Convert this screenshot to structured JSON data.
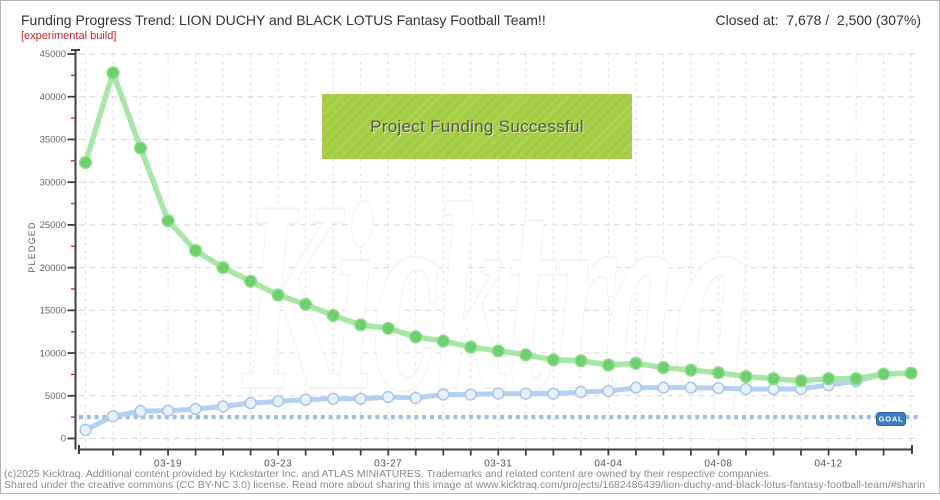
{
  "header": {
    "title": "Funding Progress Trend: LION DUCHY and BLACK LOTUS Fantasy Football Team!!",
    "closed_label": "Closed at:",
    "closed_value": "7,678 /  2,500 (307%)",
    "experimental": "[experimental build]"
  },
  "banner": {
    "text": "Project Funding Successful"
  },
  "watermark": "Kicktraq",
  "footer": {
    "line1": "(c)2025 Kicktraq. Additional content provided by Kickstarter Inc. and ATLAS MINIATURES. Trademarks and related content are owned by their respective companies.",
    "line2": "Shared under the creative commons (CC BY-NC 3.0) license. Read more about sharing this image at www.kicktraq.com/projects/1682486439/lion-duchy-and-black-lotus-fantasy-football-team/#sharin"
  },
  "chart_data": {
    "type": "line",
    "title": "Funding Progress Trend",
    "ylabel": "PLEDGED",
    "ylim": [
      0,
      45000
    ],
    "ytick_step": 5000,
    "ytick_minor_step": 2500,
    "goal": 2500,
    "goal_label": "GOAL",
    "grid": true,
    "x": [
      "03-16",
      "03-17",
      "03-18",
      "03-19",
      "03-20",
      "03-21",
      "03-22",
      "03-23",
      "03-24",
      "03-25",
      "03-26",
      "03-27",
      "03-28",
      "03-29",
      "03-30",
      "03-31",
      "04-01",
      "04-02",
      "04-03",
      "04-04",
      "04-05",
      "04-06",
      "04-07",
      "04-08",
      "04-09",
      "04-10",
      "04-11",
      "04-12",
      "04-13",
      "04-14",
      "04-15"
    ],
    "x_tick_labels": [
      "03-19",
      "03-23",
      "03-27",
      "03-31",
      "04-04",
      "04-08",
      "04-12"
    ],
    "x_tick_indices": [
      3,
      7,
      11,
      15,
      19,
      23,
      27
    ],
    "series": [
      {
        "name": "projection-trend",
        "line_color": "#a8e7a8",
        "dot_fill": "#6ecf6e",
        "dot_stroke": "#8cdc8c",
        "values": [
          32300,
          42800,
          34000,
          25500,
          22000,
          20000,
          18400,
          16800,
          15700,
          14400,
          13300,
          12900,
          11900,
          11400,
          10700,
          10250,
          9800,
          9200,
          9100,
          8600,
          8800,
          8300,
          8000,
          7700,
          7250,
          7000,
          6750,
          7000,
          7000,
          7550,
          7650
        ]
      },
      {
        "name": "pledged",
        "line_color": "#b3d1f1",
        "dot_fill": "#e9f1fb",
        "dot_stroke": "#a6c7ec",
        "values": [
          1000,
          2600,
          3200,
          3250,
          3450,
          3750,
          4150,
          4350,
          4550,
          4650,
          4650,
          4850,
          4750,
          5150,
          5150,
          5250,
          5250,
          5250,
          5450,
          5550,
          5950,
          5950,
          5950,
          5900,
          5800,
          5800,
          5800,
          6250,
          6700,
          7550,
          7678
        ]
      }
    ],
    "colors": {
      "goal_line": "#9dbfe4",
      "goal_box": "#3c7dc0",
      "goal_box_border": "#2f64a0",
      "axis": "#3f3f3f",
      "minor_tick": "#cc2f2f",
      "grid_h": "#d8d8d8",
      "grid_v": "#e0e0e0",
      "banner_bg": "#a3cc41"
    }
  }
}
